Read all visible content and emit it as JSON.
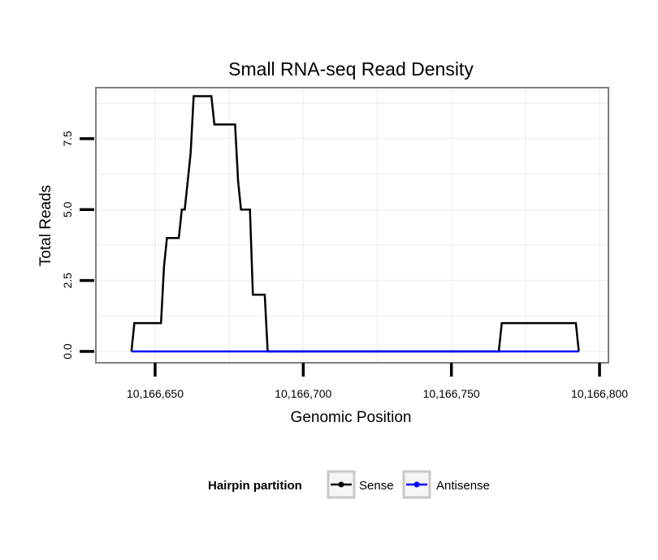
{
  "chart_data": {
    "type": "line",
    "title": "Small RNA-seq Read Density",
    "xlabel": "Genomic Position",
    "ylabel": "Total Reads",
    "xlim": [
      10166630,
      10166803
    ],
    "ylim": [
      -0.4,
      9.3
    ],
    "x_ticks": [
      10166650,
      10166700,
      10166750,
      10166800
    ],
    "x_tick_labels": [
      "10,166,650",
      "10,166,700",
      "10,166,750",
      "10,166,800"
    ],
    "y_ticks": [
      0,
      2.5,
      5,
      7.5
    ],
    "y_tick_labels": [
      "0.0",
      "2.5",
      "5.0",
      "7.5"
    ],
    "grid": true,
    "legend": {
      "title": "Hairpin partition",
      "position": "bottom",
      "entries": [
        "Sense",
        "Antisense"
      ]
    },
    "series": [
      {
        "name": "Sense",
        "color": "#000000",
        "points": [
          [
            10166642,
            0
          ],
          [
            10166643,
            1
          ],
          [
            10166646,
            1
          ],
          [
            10166649,
            1
          ],
          [
            10166652,
            1
          ],
          [
            10166653,
            3
          ],
          [
            10166654,
            4
          ],
          [
            10166656,
            4
          ],
          [
            10166658,
            4
          ],
          [
            10166659,
            5
          ],
          [
            10166660,
            5
          ],
          [
            10166661,
            6
          ],
          [
            10166662,
            7
          ],
          [
            10166663,
            9
          ],
          [
            10166666,
            9
          ],
          [
            10166669,
            9
          ],
          [
            10166670,
            8
          ],
          [
            10166674,
            8
          ],
          [
            10166677,
            8
          ],
          [
            10166678,
            6
          ],
          [
            10166679,
            5
          ],
          [
            10166682,
            5
          ],
          [
            10166683,
            2
          ],
          [
            10166685,
            2
          ],
          [
            10166687,
            2
          ],
          [
            10166688,
            0
          ],
          [
            10166720,
            0
          ],
          [
            10166766,
            0
          ],
          [
            10166767,
            1
          ],
          [
            10166770,
            1
          ],
          [
            10166780,
            1
          ],
          [
            10166792,
            1
          ],
          [
            10166793,
            0
          ]
        ]
      },
      {
        "name": "Antisense",
        "color": "#0000ff",
        "points": [
          [
            10166642,
            0
          ],
          [
            10166793,
            0
          ]
        ]
      }
    ]
  }
}
